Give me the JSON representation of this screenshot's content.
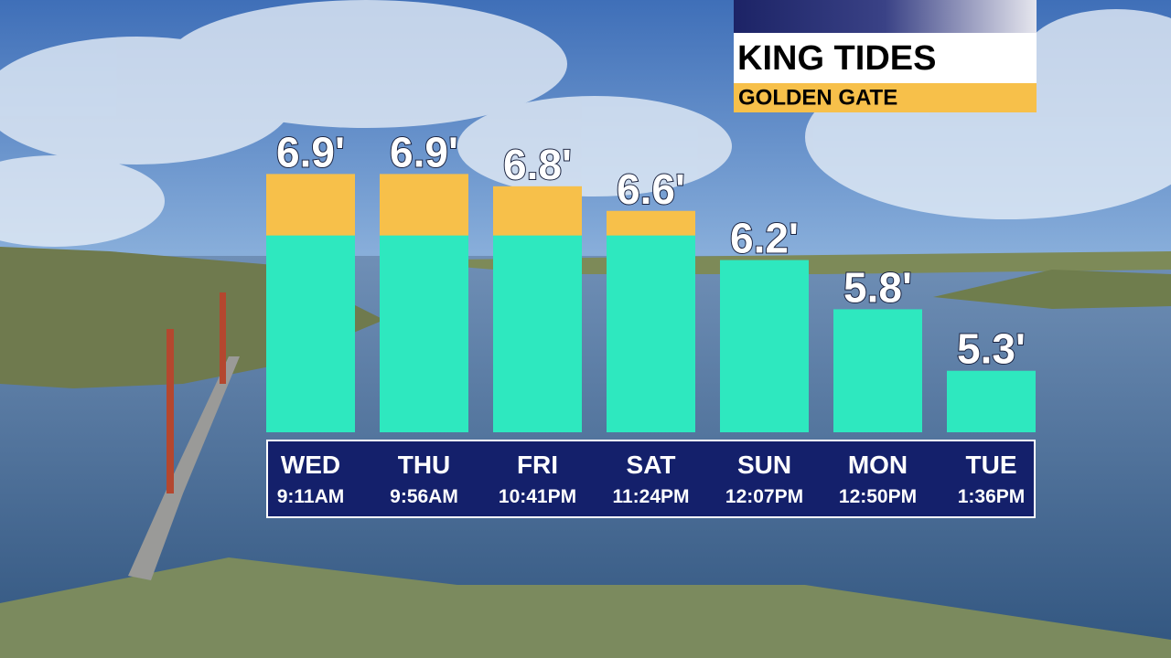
{
  "chart_data": {
    "type": "bar",
    "title": "KING TIDES",
    "subtitle": "GOLDEN GATE",
    "categories": [
      "WED",
      "THU",
      "FRI",
      "SAT",
      "SUN",
      "MON",
      "TUE"
    ],
    "times": [
      "9:11AM",
      "9:56AM",
      "10:41PM",
      "11:24PM",
      "12:07PM",
      "12:50PM",
      "1:36PM"
    ],
    "values": [
      6.9,
      6.9,
      6.8,
      6.6,
      6.2,
      5.8,
      5.3
    ],
    "value_labels": [
      "6.9'",
      "6.9'",
      "6.8'",
      "6.6'",
      "6.2'",
      "5.8'",
      "5.3'"
    ],
    "color": "#2ee8bf",
    "highlight_above": 6.4,
    "highlight_color": "#f7c04a",
    "ylim": [
      4.8,
      7.2
    ]
  }
}
